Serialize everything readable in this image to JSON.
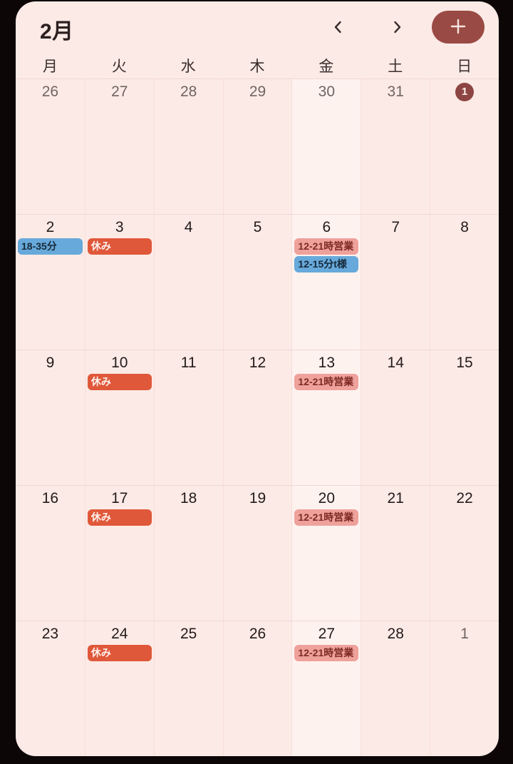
{
  "colors": {
    "surface": "#fceae6",
    "frame": "#0c0607",
    "accent": "#9a4a44",
    "badge": "#8d4543",
    "event_blue_bg": "#67a9da",
    "event_blue_text": "#16293a",
    "event_orange_bg": "#e0583a",
    "event_orange_text": "#fdf1ed",
    "event_salmon_bg": "#efa19b",
    "event_salmon_text": "#7e2a23"
  },
  "header": {
    "title": "2月",
    "prev_icon": "chevron-left-icon",
    "next_icon": "chevron-right-icon",
    "add_icon": "plus-icon"
  },
  "calendar": {
    "weekdays": [
      "月",
      "火",
      "水",
      "木",
      "金",
      "土",
      "日"
    ],
    "highlight_column": 4,
    "weeks": [
      [
        {
          "day": "26",
          "outside": true
        },
        {
          "day": "27",
          "outside": true
        },
        {
          "day": "28",
          "outside": true
        },
        {
          "day": "29",
          "outside": true
        },
        {
          "day": "30",
          "outside": true
        },
        {
          "day": "31",
          "outside": true
        },
        {
          "day": "1",
          "badge": true
        }
      ],
      [
        {
          "day": "2",
          "events": [
            {
              "type": "blue",
              "label": "18-35分"
            }
          ]
        },
        {
          "day": "3",
          "events": [
            {
              "type": "orange",
              "label": "休み"
            }
          ]
        },
        {
          "day": "4"
        },
        {
          "day": "5"
        },
        {
          "day": "6",
          "events": [
            {
              "type": "salmon",
              "label": "12-21時営業"
            },
            {
              "type": "blue",
              "label": "12-15分t様"
            }
          ]
        },
        {
          "day": "7"
        },
        {
          "day": "8"
        }
      ],
      [
        {
          "day": "9"
        },
        {
          "day": "10",
          "events": [
            {
              "type": "orange",
              "label": "休み"
            }
          ]
        },
        {
          "day": "11"
        },
        {
          "day": "12"
        },
        {
          "day": "13",
          "events": [
            {
              "type": "salmon",
              "label": "12-21時営業"
            }
          ]
        },
        {
          "day": "14"
        },
        {
          "day": "15"
        }
      ],
      [
        {
          "day": "16"
        },
        {
          "day": "17",
          "events": [
            {
              "type": "orange",
              "label": "休み"
            }
          ]
        },
        {
          "day": "18"
        },
        {
          "day": "19"
        },
        {
          "day": "20",
          "events": [
            {
              "type": "salmon",
              "label": "12-21時営業"
            }
          ]
        },
        {
          "day": "21"
        },
        {
          "day": "22"
        }
      ],
      [
        {
          "day": "23"
        },
        {
          "day": "24",
          "events": [
            {
              "type": "orange",
              "label": "休み"
            }
          ]
        },
        {
          "day": "25"
        },
        {
          "day": "26"
        },
        {
          "day": "27",
          "events": [
            {
              "type": "salmon",
              "label": "12-21時営業"
            }
          ]
        },
        {
          "day": "28"
        },
        {
          "day": "1",
          "outside": true
        }
      ]
    ]
  }
}
